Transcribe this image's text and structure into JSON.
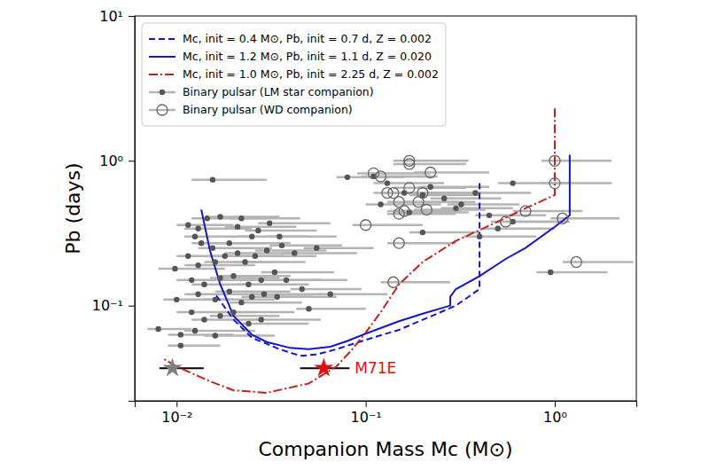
{
  "chart_data": {
    "type": "scatter",
    "x_label": "Companion Mass Mc (M⊙)",
    "y_label": "Pb (days)",
    "log": true,
    "legend": "upper left",
    "xlim": [
      0.006,
      2.7
    ],
    "ylim": [
      0.022,
      10
    ],
    "xticks": [
      {
        "value": 0.01,
        "label": "10⁻²"
      },
      {
        "value": 0.1,
        "label": "10⁻¹"
      },
      {
        "value": 1,
        "label": "10⁰"
      }
    ],
    "yticks": [
      {
        "value": 0.1,
        "label": "10⁻¹"
      },
      {
        "value": 1,
        "label": "10⁰"
      },
      {
        "value": 10,
        "label": "10¹"
      }
    ],
    "series": [
      {
        "name": "Mc, init = 0.4 M⊙, Pb, init = 0.7 d, Z = 0.002",
        "type": "line",
        "color": "#1515c8",
        "line_style": "dashed",
        "x": [
          0.4,
          0.4,
          0.3,
          0.15,
          0.1,
          0.07,
          0.055,
          0.045,
          0.035,
          0.025,
          0.02,
          0.016
        ],
        "values": [
          0.7,
          0.13,
          0.1,
          0.068,
          0.058,
          0.05,
          0.046,
          0.045,
          0.05,
          0.06,
          0.08,
          0.12
        ]
      },
      {
        "name": "Mc, init = 1.2 M⊙, Pb, init = 1.1 d, Z = 0.020",
        "type": "line",
        "color": "#1515c8",
        "line_style": "solid",
        "x": [
          1.2,
          1.2,
          1.0,
          0.7,
          0.55,
          0.4,
          0.3,
          0.28,
          0.28,
          0.2,
          0.15,
          0.1,
          0.08,
          0.065,
          0.05,
          0.04,
          0.03,
          0.025,
          0.02,
          0.017,
          0.015,
          0.0135
        ],
        "values": [
          1.1,
          0.42,
          0.35,
          0.25,
          0.21,
          0.16,
          0.13,
          0.115,
          0.1,
          0.088,
          0.078,
          0.064,
          0.057,
          0.052,
          0.05,
          0.051,
          0.056,
          0.063,
          0.085,
          0.14,
          0.24,
          0.46
        ]
      },
      {
        "name": "Mc, init = 1.0 M⊙, Pb, init = 2.25 d, Z = 0.002",
        "type": "line",
        "color": "#c41e1e",
        "line_style": "dashdot",
        "x": [
          1.0,
          1.0,
          0.7,
          0.5,
          0.3,
          0.2,
          0.15,
          0.12,
          0.1,
          0.085,
          0.07,
          0.05,
          0.03,
          0.02,
          0.015,
          0.01,
          0.0085
        ],
        "values": [
          2.3,
          0.58,
          0.47,
          0.38,
          0.28,
          0.2,
          0.14,
          0.09,
          0.065,
          0.05,
          0.038,
          0.029,
          0.025,
          0.026,
          0.03,
          0.038,
          0.043
        ]
      },
      {
        "name": "Binary pulsar (LM star companion)",
        "type": "scatter",
        "color": "#555555",
        "marker": "circle",
        "x": [
          0.0155,
          0.0098,
          0.008,
          0.0105,
          0.0105,
          0.0115,
          0.013,
          0.0145,
          0.017,
          0.022,
          0.0125,
          0.0135,
          0.0155,
          0.019,
          0.025,
          0.027,
          0.031,
          0.021,
          0.0115,
          0.013,
          0.016,
          0.018,
          0.021,
          0.023,
          0.026,
          0.03,
          0.036,
          0.042,
          0.012,
          0.014,
          0.017,
          0.02,
          0.024,
          0.028,
          0.033,
          0.038,
          0.046,
          0.013,
          0.016,
          0.019,
          0.022,
          0.025,
          0.029,
          0.034,
          0.012,
          0.014,
          0.017,
          0.02,
          0.024,
          0.028,
          0.0125,
          0.016,
          0.05,
          0.065,
          0.08,
          0.11,
          0.13,
          0.16,
          0.2,
          0.22,
          0.12,
          0.26,
          0.32,
          0.45,
          0.3,
          0.6,
          0.95,
          0.5,
          0.17,
          0.38,
          0.6,
          0.2,
          0.4,
          0.035,
          0.055,
          0.01
        ],
        "values": [
          0.74,
          0.18,
          0.069,
          0.063,
          0.053,
          0.36,
          0.34,
          0.4,
          0.41,
          0.4,
          0.3,
          0.27,
          0.25,
          0.27,
          0.3,
          0.33,
          0.37,
          0.35,
          0.22,
          0.19,
          0.2,
          0.22,
          0.23,
          0.2,
          0.22,
          0.24,
          0.26,
          0.23,
          0.15,
          0.14,
          0.155,
          0.16,
          0.14,
          0.15,
          0.17,
          0.15,
          0.13,
          0.12,
          0.11,
          0.125,
          0.105,
          0.115,
          0.12,
          0.115,
          0.09,
          0.08,
          0.085,
          0.09,
          0.075,
          0.08,
          0.067,
          0.062,
          0.095,
          0.12,
          0.77,
          0.78,
          0.7,
          0.6,
          0.58,
          0.66,
          0.5,
          0.55,
          0.5,
          0.42,
          0.47,
          0.38,
          0.17,
          0.34,
          0.44,
          0.6,
          0.7,
          0.32,
          0.3,
          0.3,
          0.25,
          0.11
        ],
        "x_min": [
          0.012,
          0.008,
          0.007,
          0.009,
          0.009,
          0.01,
          0.011,
          0.012,
          0.015,
          0.019,
          0.011,
          0.012,
          0.013,
          0.016,
          0.021,
          0.023,
          0.027,
          0.018,
          0.01,
          0.011,
          0.014,
          0.015,
          0.018,
          0.02,
          0.022,
          0.026,
          0.031,
          0.036,
          0.01,
          0.012,
          0.015,
          0.017,
          0.021,
          0.024,
          0.028,
          0.033,
          0.04,
          0.011,
          0.014,
          0.016,
          0.019,
          0.022,
          0.025,
          0.029,
          0.01,
          0.012,
          0.015,
          0.017,
          0.021,
          0.024,
          0.011,
          0.014,
          0.043,
          0.056,
          0.07,
          0.095,
          0.11,
          0.14,
          0.17,
          0.19,
          0.1,
          0.22,
          0.27,
          0.38,
          0.25,
          0.5,
          0.8,
          0.42,
          0.14,
          0.32,
          0.5,
          0.17,
          0.33,
          0.03,
          0.047,
          0.0085
        ],
        "x_max": [
          0.03,
          0.018,
          0.012,
          0.02,
          0.017,
          0.02,
          0.025,
          0.03,
          0.035,
          0.045,
          0.025,
          0.028,
          0.032,
          0.04,
          0.05,
          0.055,
          0.065,
          0.043,
          0.022,
          0.026,
          0.032,
          0.037,
          0.045,
          0.048,
          0.055,
          0.062,
          0.075,
          0.09,
          0.024,
          0.028,
          0.035,
          0.04,
          0.05,
          0.058,
          0.068,
          0.08,
          0.095,
          0.026,
          0.033,
          0.04,
          0.046,
          0.052,
          0.06,
          0.07,
          0.025,
          0.028,
          0.035,
          0.042,
          0.05,
          0.058,
          0.026,
          0.033,
          0.1,
          0.13,
          0.16,
          0.22,
          0.26,
          0.32,
          0.4,
          0.45,
          0.25,
          0.52,
          0.65,
          0.9,
          0.6,
          1.2,
          1.9,
          1.0,
          0.35,
          0.75,
          1.2,
          0.4,
          0.8,
          0.07,
          0.11,
          0.02
        ]
      },
      {
        "name": "Binary pulsar (WD companion)",
        "type": "scatter",
        "color": "#666666",
        "marker": "circle_open",
        "x": [
          0.11,
          0.12,
          0.17,
          0.17,
          0.22,
          0.13,
          0.14,
          0.17,
          0.2,
          0.15,
          0.16,
          0.15,
          0.21,
          0.1,
          0.15,
          0.14,
          0.55,
          0.7,
          1.0,
          1.0,
          1.1,
          1.3,
          0.19
        ],
        "values": [
          0.82,
          0.78,
          1.0,
          0.95,
          0.83,
          0.6,
          0.6,
          0.65,
          0.6,
          0.52,
          0.45,
          0.43,
          0.46,
          0.36,
          0.27,
          0.145,
          0.38,
          0.45,
          1.0,
          0.7,
          0.4,
          0.2,
          0.52
        ],
        "x_min": [
          0.09,
          0.1,
          0.14,
          0.14,
          0.18,
          0.11,
          0.12,
          0.14,
          0.17,
          0.13,
          0.13,
          0.13,
          0.18,
          0.085,
          0.13,
          0.12,
          0.46,
          0.6,
          0.85,
          0.85,
          0.95,
          1.1,
          0.16
        ],
        "x_max": [
          0.22,
          0.24,
          0.35,
          0.34,
          0.45,
          0.27,
          0.29,
          0.34,
          0.41,
          0.31,
          0.32,
          0.3,
          0.43,
          0.2,
          0.3,
          0.28,
          1.1,
          1.4,
          2.0,
          2.0,
          2.2,
          2.6,
          0.38
        ]
      },
      {
        "name": "M71E",
        "type": "scatter",
        "color": "#e01010",
        "marker": "star",
        "x": [
          0.06
        ],
        "values": [
          0.037
        ],
        "x_min": [
          0.045
        ],
        "x_max": [
          0.082
        ]
      },
      {
        "type": "scatter",
        "color": "#808080",
        "marker": "star",
        "x": [
          0.0095
        ],
        "values": [
          0.037
        ],
        "x_min": [
          0.0081
        ],
        "x_max": [
          0.0139
        ]
      }
    ]
  }
}
